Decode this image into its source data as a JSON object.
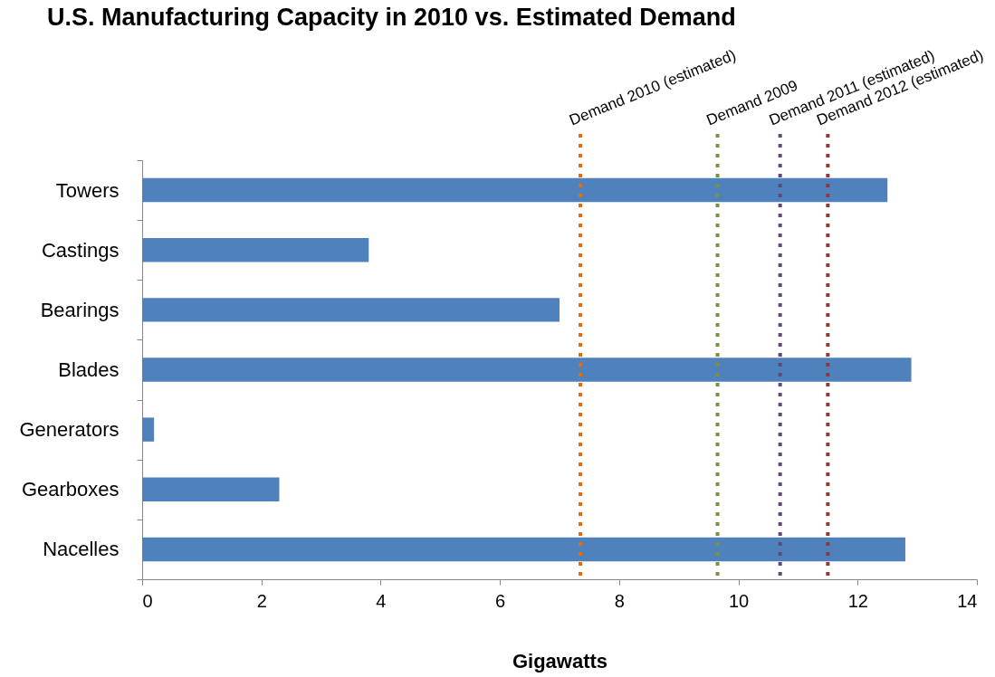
{
  "chart_data": {
    "type": "bar",
    "orientation": "horizontal",
    "title": "U.S. Manufacturing Capacity in 2010 vs. Estimated Demand",
    "xlabel": "Gigawatts",
    "categories": [
      "Towers",
      "Castings",
      "Bearings",
      "Blades",
      "Generators",
      "Gearboxes",
      "Nacelles"
    ],
    "values": [
      12.5,
      3.8,
      7.0,
      12.9,
      0.2,
      2.3,
      12.8
    ],
    "color": "#4f81bd",
    "xlim": [
      0,
      14
    ],
    "xticks": [
      0,
      2,
      4,
      6,
      8,
      10,
      12,
      14
    ],
    "ref_lines": [
      {
        "axis": "x",
        "value": 7.35,
        "label": "Demand 2010 (estimated)",
        "color": "#e46c0a",
        "line_style": "dotted"
      },
      {
        "axis": "x",
        "value": 9.65,
        "label": "Demand 2009",
        "color": "#77933c",
        "line_style": "dotted"
      },
      {
        "axis": "x",
        "value": 10.7,
        "label": "Demand 2011 (estimated)",
        "color": "#604a7b",
        "line_style": "dotted"
      },
      {
        "axis": "x",
        "value": 11.5,
        "label": "Demand 2012 (estimated)",
        "color": "#953735",
        "line_style": "dotted"
      }
    ]
  }
}
